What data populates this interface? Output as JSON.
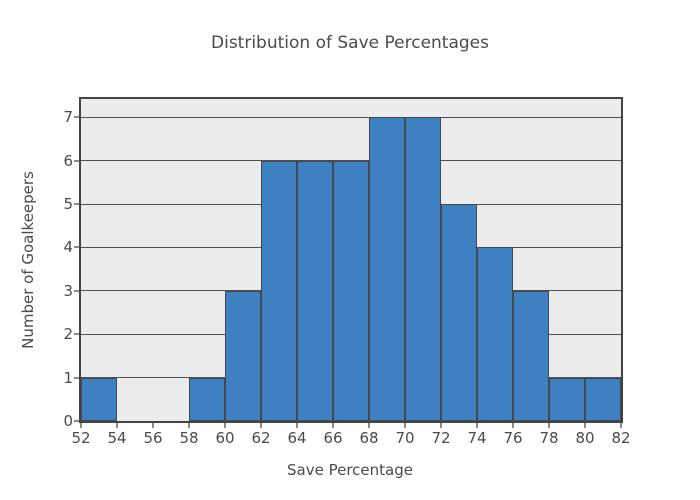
{
  "chart_data": {
    "type": "bar",
    "subtype": "histogram",
    "title": "Distribution of Save Percentages",
    "xlabel": "Save Percentage",
    "ylabel": "Number of Goalkeepers",
    "bin_edges": [
      52,
      54,
      56,
      58,
      60,
      62,
      64,
      66,
      68,
      70,
      72,
      74,
      76,
      78,
      80,
      82
    ],
    "counts": [
      1,
      0,
      0,
      1,
      3,
      6,
      6,
      6,
      7,
      7,
      5,
      4,
      3,
      1,
      1
    ],
    "x_ticks": [
      52,
      54,
      56,
      58,
      60,
      62,
      64,
      66,
      68,
      70,
      72,
      74,
      76,
      78,
      80,
      82
    ],
    "y_ticks": [
      0,
      1,
      2,
      3,
      4,
      5,
      6,
      7
    ],
    "xlim": [
      52,
      82
    ],
    "ylim": [
      0,
      7.42
    ],
    "grid": "horizontal-only",
    "legend": "none",
    "colors": {
      "bar_fill": "#3e81c3",
      "bar_edge": "#45484b",
      "plot_background": "#ececec",
      "paper_background": "#ffffff",
      "grid_line": "#4f4f4f",
      "axis_border": "#444444",
      "tick_mark": "#8a8a8a",
      "text": "#4b4b4b"
    }
  }
}
